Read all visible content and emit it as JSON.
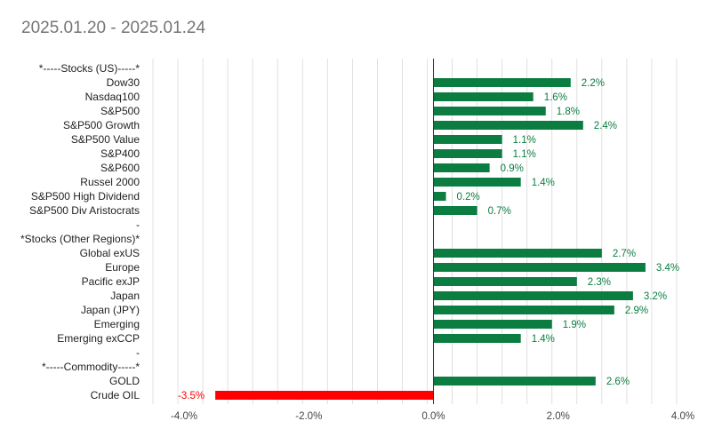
{
  "chart_data": {
    "type": "bar",
    "orientation": "horizontal",
    "title": "2025.01.20 - 2025.01.24",
    "xlabel": "",
    "ylabel": "",
    "xlim": [
      -4.5,
      4.0
    ],
    "grid": true,
    "legend": "none",
    "x_ticks": [
      -4.0,
      -2.0,
      0.0,
      2.0,
      4.0
    ],
    "x_tick_labels": [
      "-4.0%",
      "-2.0%",
      "0.0%",
      "2.0%",
      "4.0%"
    ],
    "categories": [
      "*-----Stocks (US)-----*",
      "Dow30",
      "Nasdaq100",
      "S&P500",
      "S&P500 Growth",
      "S&P500 Value",
      "S&P400",
      "S&P600",
      "Russel 2000",
      "S&P500 High Dividend",
      "S&P500 Div Aristocrats",
      "-",
      "*Stocks (Other Regions)*",
      "Global exUS",
      "Europe",
      "Pacific exJP",
      "Japan",
      "Japan (JPY)",
      "Emerging",
      "Emerging exCCP",
      "-",
      "*-----Commodity-----*",
      "GOLD",
      "Crude OIL"
    ],
    "values": [
      null,
      2.2,
      1.6,
      1.8,
      2.4,
      1.1,
      1.1,
      0.9,
      1.4,
      0.2,
      0.7,
      null,
      null,
      2.7,
      3.4,
      2.3,
      3.2,
      2.9,
      1.9,
      1.4,
      null,
      null,
      2.6,
      -3.5
    ],
    "value_labels": [
      "",
      "2.2%",
      "1.6%",
      "1.8%",
      "2.4%",
      "1.1%",
      "1.1%",
      "0.9%",
      "1.4%",
      "0.2%",
      "0.7%",
      "",
      "",
      "2.7%",
      "3.4%",
      "2.3%",
      "3.2%",
      "2.9%",
      "1.9%",
      "1.4%",
      "",
      "",
      "2.6%",
      "-3.5%"
    ]
  },
  "colors": {
    "positive": "#0b7d41",
    "negative": "#ff0000",
    "grid": "#d9d9d9",
    "axis": "#333333",
    "title": "#757575"
  }
}
